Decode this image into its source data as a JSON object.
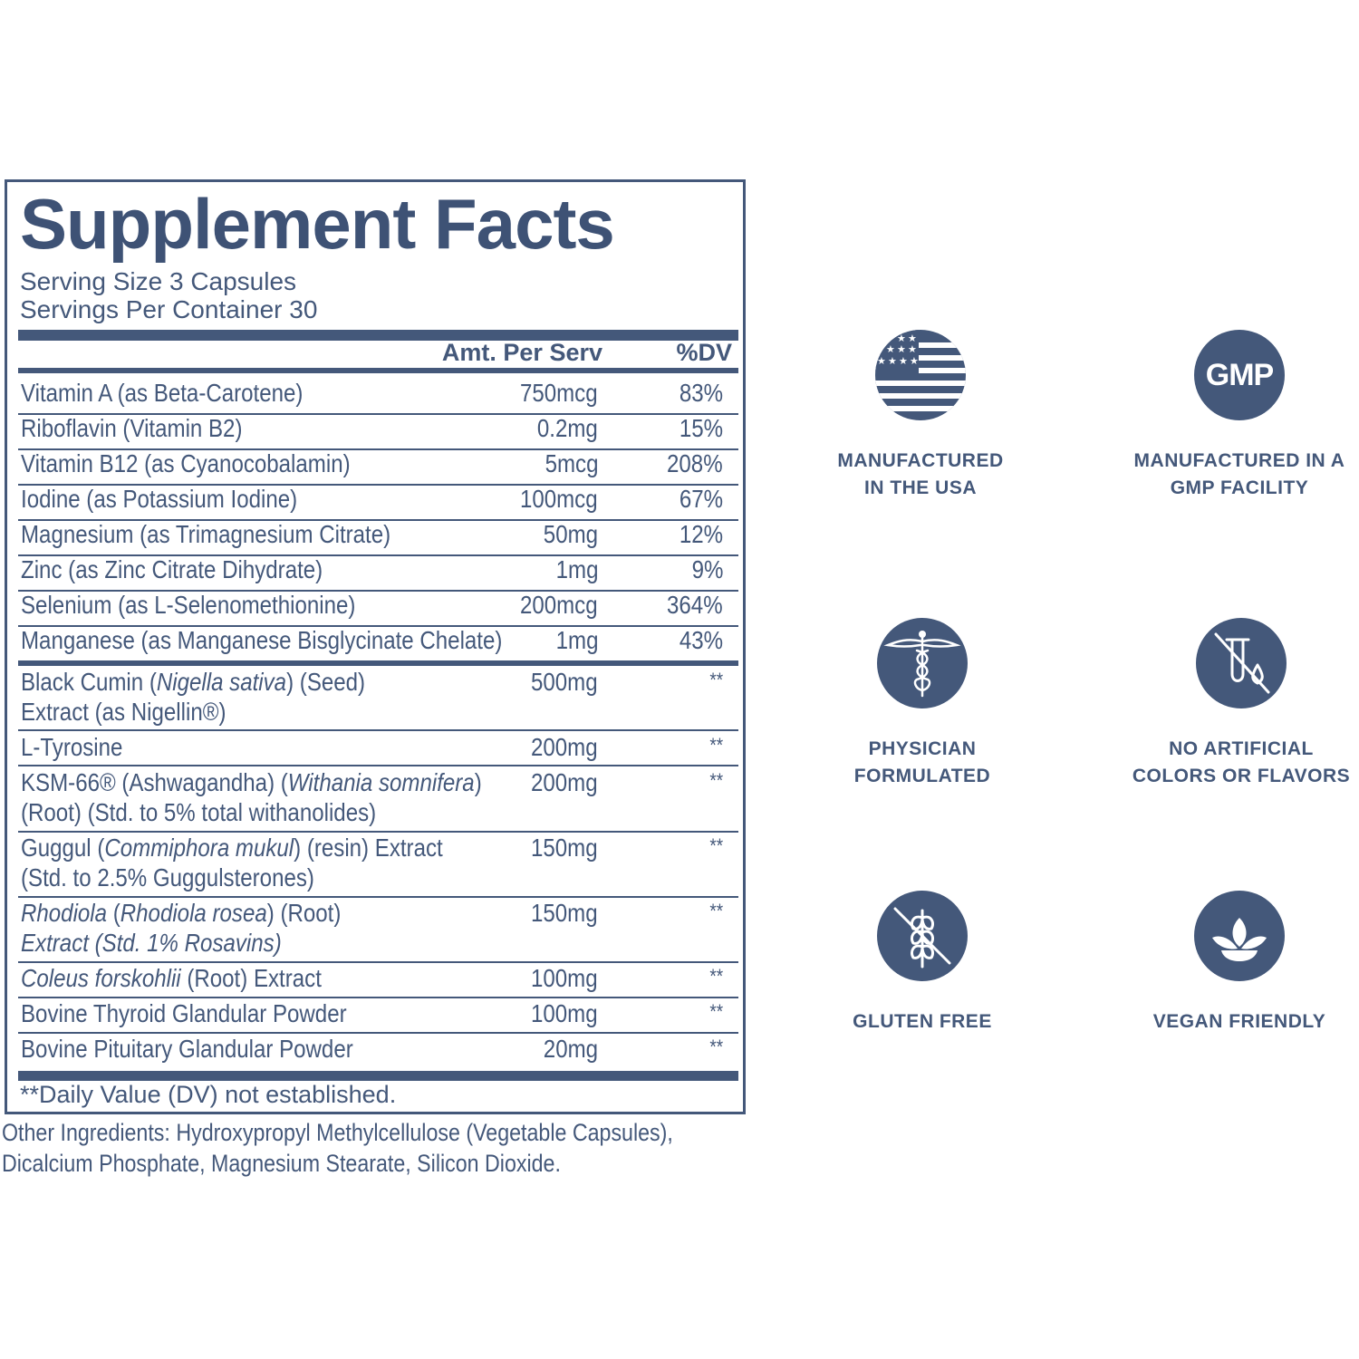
{
  "facts": {
    "title": "Supplement Facts",
    "serving_size": "Serving Size 3 Capsules",
    "servings_per_container": "Servings Per Container 30",
    "col_amount": "Amt. Per Serv",
    "col_dv": "%DV",
    "vitamins": [
      {
        "name": "Vitamin A (as Beta-Carotene)",
        "amount": "750mcg",
        "dv": "83%"
      },
      {
        "name": "Riboflavin (Vitamin B2)",
        "amount": "0.2mg",
        "dv": "15%"
      },
      {
        "name": "Vitamin B12 (as Cyanocobalamin)",
        "amount": "5mcg",
        "dv": "208%"
      },
      {
        "name": "Iodine (as Potassium Iodine)",
        "amount": "100mcg",
        "dv": "67%"
      },
      {
        "name": "Magnesium (as Trimagnesium Citrate)",
        "amount": "50mg",
        "dv": "12%"
      },
      {
        "name": "Zinc (as Zinc Citrate Dihydrate)",
        "amount": "1mg",
        "dv": "9%"
      },
      {
        "name": "Selenium (as L-Selenomethionine)",
        "amount": "200mcg",
        "dv": "364%"
      },
      {
        "name": "Manganese (as Manganese Bisglycinate Chelate)",
        "amount": "1mg",
        "dv": "43%"
      }
    ],
    "blend": [
      {
        "name_a": "Black Cumin (",
        "name_a_it": "Nigella sativa",
        "name_a_end": ") (Seed)",
        "name_b": "Extract (as Nigellin®)",
        "amount": "500mg",
        "dv": "**"
      },
      {
        "name_a": "L-Tyrosine",
        "amount": "200mg",
        "dv": "**"
      },
      {
        "name_a": "KSM-66® (Ashwagandha) (",
        "name_a_it": "Withania somnifera",
        "name_a_end": ")",
        "name_b": "(Root) (Std. to 5% total withanolides)",
        "amount": "200mg",
        "dv": "**"
      },
      {
        "name_a": "Guggul (",
        "name_a_it": "Commiphora mukul",
        "name_a_end": ") (resin) Extract",
        "name_b": "(Std. to 2.5% Guggulsterones)",
        "amount": "150mg",
        "dv": "**"
      },
      {
        "name_a_it": "Rhodiola",
        "name_a": " (",
        "name_a_it2": "Rhodiola rosea",
        "name_a_end": ") (Root)",
        "name_b_it": "Extract (Std. 1% Rosavins)",
        "amount": "150mg",
        "dv": "**"
      },
      {
        "name_a_it": "Coleus forskohlii",
        "name_a_end": " (Root) Extract",
        "amount": "100mg",
        "dv": "**"
      },
      {
        "name_a": "Bovine Thyroid Glandular Powder",
        "amount": "100mg",
        "dv": "**"
      },
      {
        "name_a": "Bovine Pituitary Glandular Powder",
        "amount": "20mg",
        "dv": "**"
      }
    ],
    "footnote": "**Daily Value (DV) not established.",
    "other_line1": "Other Ingredients: Hydroxypropyl Methylcellulose (Vegetable Capsules),",
    "other_line2": "Dicalcium Phosphate, Magnesium Stearate, Silicon Dioxide."
  },
  "badges": {
    "usa": {
      "icon": "usa-flag-icon",
      "line1": "MANUFACTURED",
      "line2": "IN THE USA"
    },
    "gmp": {
      "icon": "gmp-icon",
      "icon_text": "GMP",
      "line1": "MANUFACTURED IN A",
      "line2": "GMP FACILITY"
    },
    "physician": {
      "icon": "caduceus-icon",
      "line1": "PHYSICIAN",
      "line2": "FORMULATED"
    },
    "no_artificial": {
      "icon": "no-artificial-icon",
      "line1": "NO ARTIFICIAL",
      "line2": "COLORS OR FLAVORS"
    },
    "gluten": {
      "icon": "no-gluten-icon",
      "line1": "GLUTEN FREE"
    },
    "vegan": {
      "icon": "leaf-icon",
      "line1": "VEGAN FRIENDLY"
    }
  },
  "colors": {
    "brand": "#44587a"
  }
}
